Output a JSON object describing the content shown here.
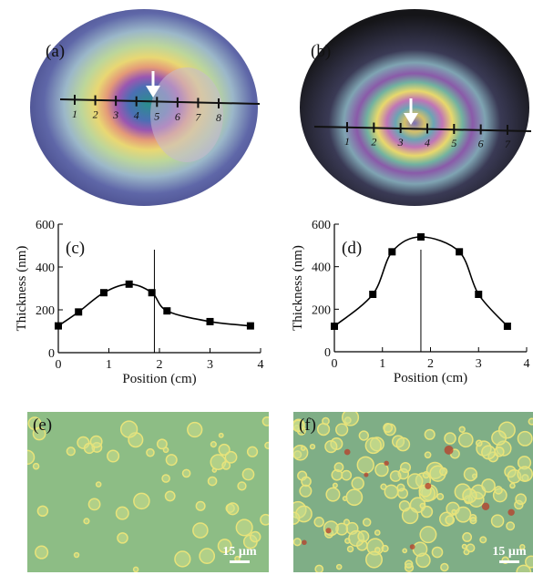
{
  "figure": {
    "panels": {
      "a": {
        "label": "(a)",
        "marks": [
          "1",
          "2",
          "3",
          "4",
          "5",
          "6",
          "7",
          "8"
        ]
      },
      "b": {
        "label": "(b)",
        "marks": [
          "1",
          "2",
          "3",
          "4",
          "5",
          "6",
          "7"
        ]
      },
      "e": {
        "label": "(e)",
        "scalebar": "15 µm"
      },
      "f": {
        "label": "(f)",
        "scalebar": "15 µm"
      }
    },
    "colors": {
      "interference_rainbow": [
        "#3a3c86",
        "#c46ab6",
        "#e9d06b",
        "#6bbf8f",
        "#2f8fa0"
      ],
      "micrograph_bg_e": "#8fbf82",
      "micrograph_bg_f": "#7fae86",
      "droplet": "#d9e06a",
      "marker": "#000000"
    }
  },
  "chart_data": [
    {
      "type": "line",
      "panel_label": "(c)",
      "xlabel": "Position (cm)",
      "ylabel": "Thickness (nm)",
      "xlim": [
        0,
        4
      ],
      "ylim": [
        0,
        600
      ],
      "xticks": [
        "0",
        "1",
        "2",
        "3",
        "4"
      ],
      "yticks": [
        "0",
        "200",
        "400",
        "600"
      ],
      "x": [
        0,
        0.4,
        0.9,
        1.4,
        1.85,
        2.15,
        3.0,
        3.8
      ],
      "values": [
        125,
        190,
        280,
        320,
        280,
        195,
        145,
        125
      ],
      "vline_x": 1.9
    },
    {
      "type": "line",
      "panel_label": "(d)",
      "xlabel": "Position (cm)",
      "ylabel": "Thickness (nm)",
      "xlim": [
        0,
        4
      ],
      "ylim": [
        0,
        600
      ],
      "xticks": [
        "0",
        "1",
        "2",
        "3",
        "4"
      ],
      "yticks": [
        "0",
        "200",
        "400",
        "600"
      ],
      "x": [
        0,
        0.8,
        1.2,
        1.8,
        2.6,
        3.0,
        3.6
      ],
      "values": [
        120,
        270,
        470,
        540,
        470,
        270,
        120
      ],
      "vline_x": 1.8
    }
  ]
}
